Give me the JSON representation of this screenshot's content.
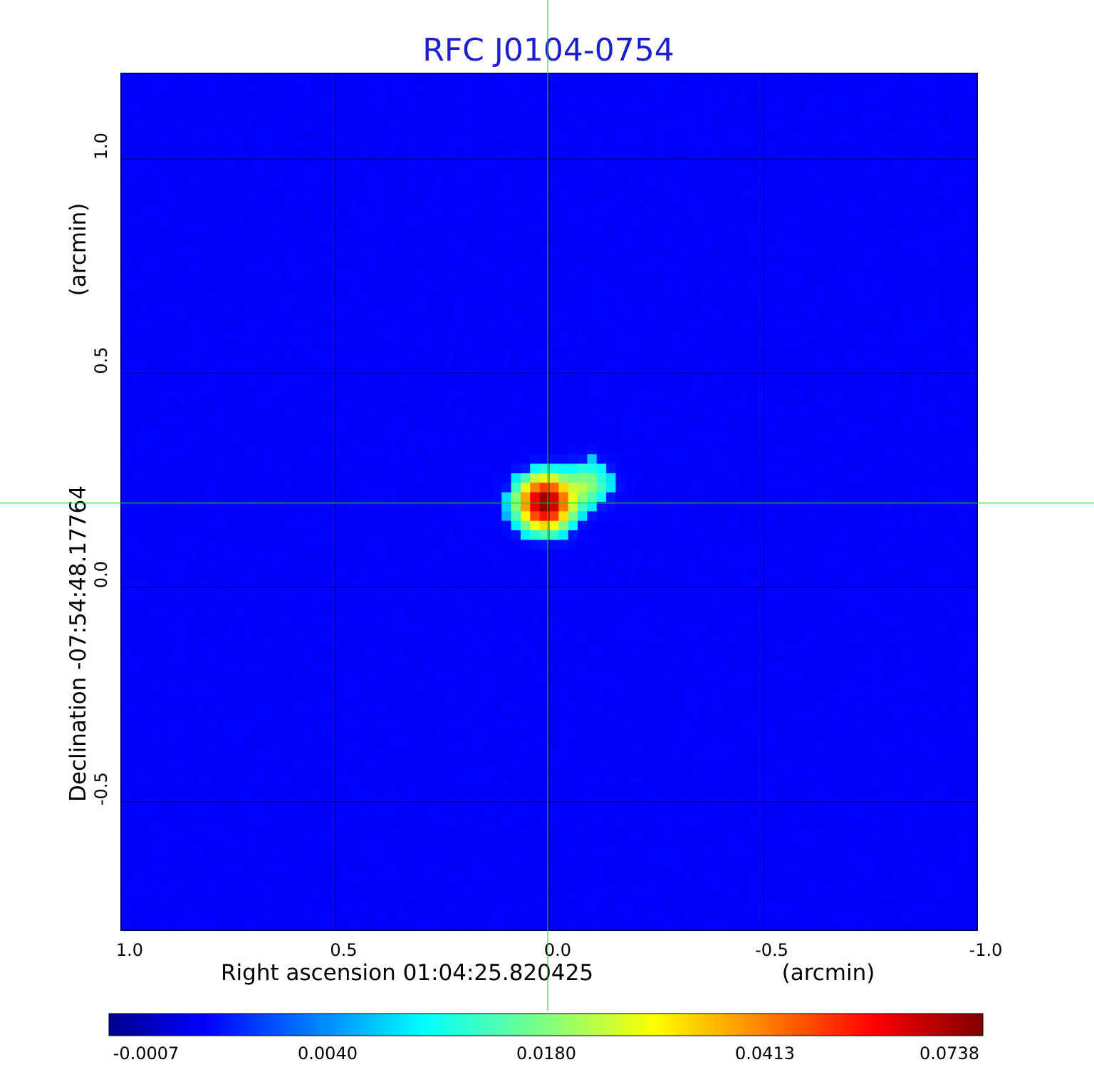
{
  "chart_data": {
    "type": "heatmap",
    "title": "RFC J0104-0754",
    "xlabel": "Right ascension  01:04:25.820425",
    "xunit": "(arcmin)",
    "ylabel": "Declination  -07:54:48.17764",
    "yunit": "(arcmin)",
    "xlim": [
      1.0,
      -1.0
    ],
    "ylim": [
      -0.8,
      1.2
    ],
    "x_ticks": [
      1.0,
      0.5,
      0.0,
      -0.5,
      -1.0
    ],
    "x_tick_labels": [
      "1.0",
      "0.5",
      "0.0",
      "-0.5",
      "-1.0"
    ],
    "y_ticks": [
      -0.5,
      0.0,
      0.5,
      1.0
    ],
    "y_tick_labels": [
      "-0.5",
      "0.0",
      "0.5",
      "1.0"
    ],
    "grid": true,
    "crosshair": {
      "x": 0.0,
      "y": 0.197,
      "color": "#00e000"
    },
    "colormap": "jet",
    "colorbar": {
      "position": "bottom",
      "tick_labels": [
        "-0.0007",
        "0.0040",
        "0.0180",
        "0.0413",
        "0.0738"
      ]
    },
    "sources": [
      {
        "x": 0.01,
        "y": 0.197,
        "peak": 0.0738,
        "sigma": 0.038
      },
      {
        "x": -0.09,
        "y": 0.24,
        "peak": 0.015,
        "sigma": 0.035
      }
    ],
    "background_level": -0.0004
  }
}
